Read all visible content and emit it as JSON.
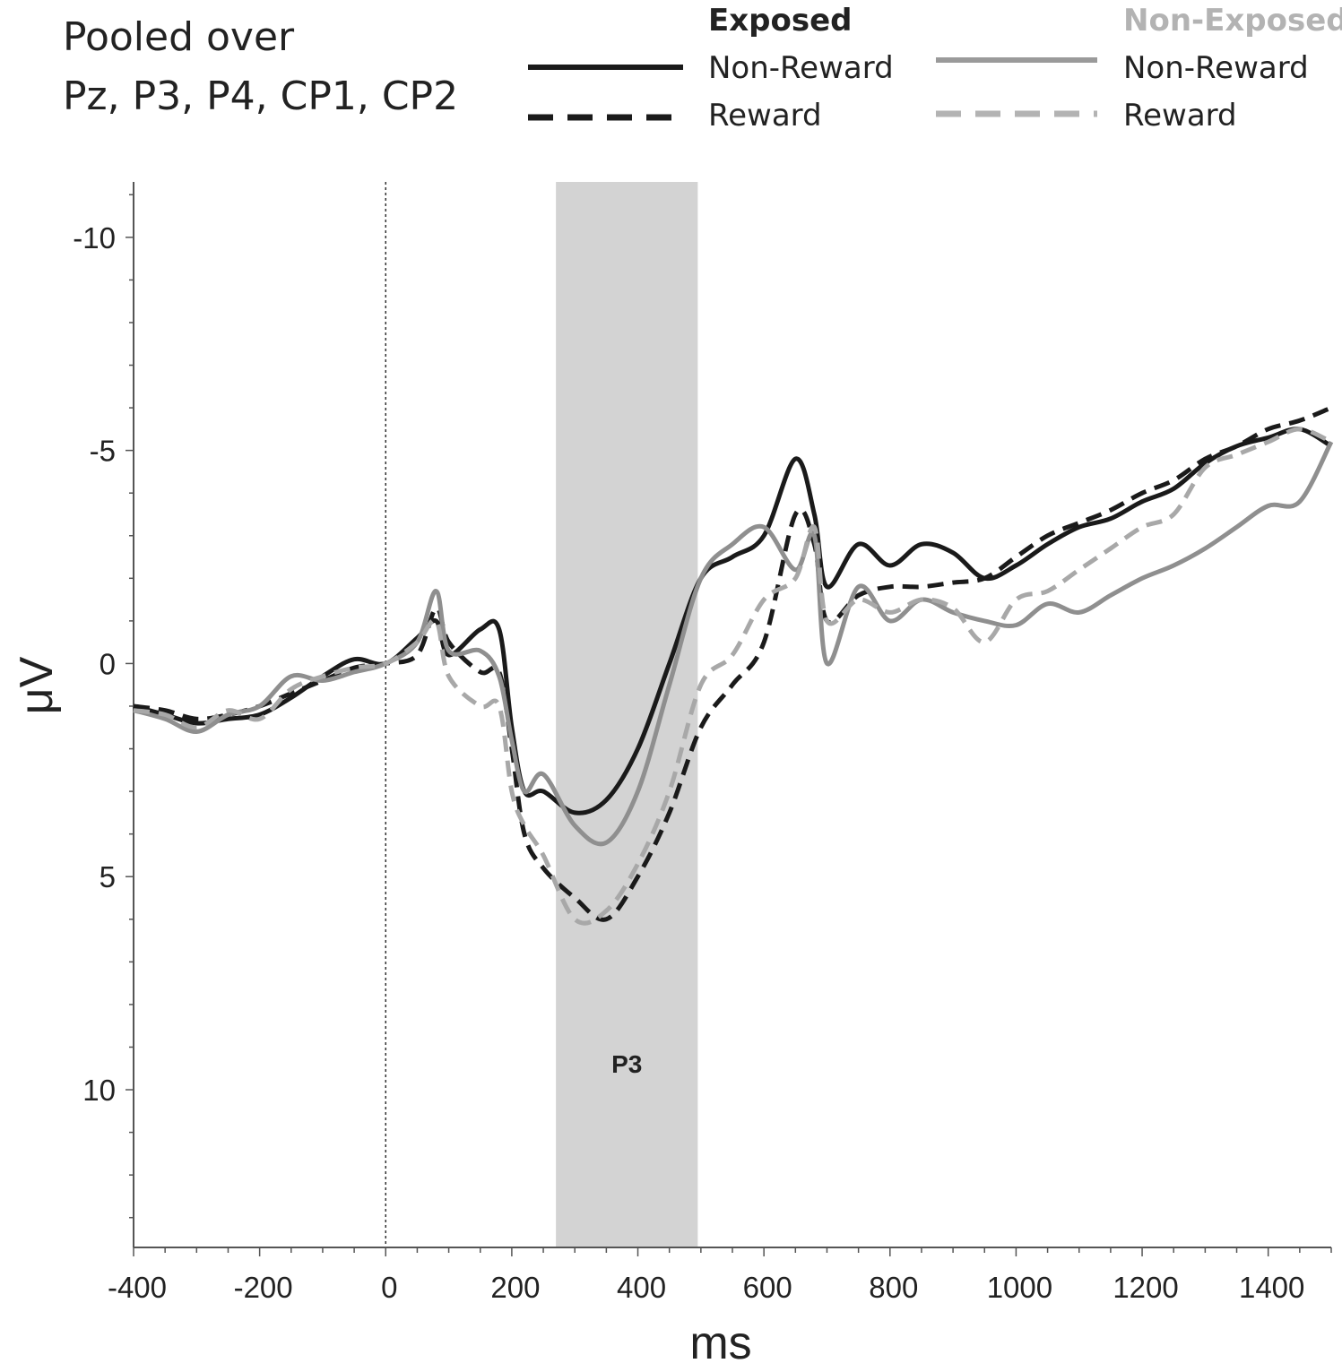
{
  "chart_data": {
    "type": "line",
    "annotation_top": [
      "Pooled over",
      "Pz, P3, P4, CP1, CP2"
    ],
    "xlabel": "ms",
    "ylabel": "μV",
    "xlim": [
      -400,
      1500
    ],
    "ylim": [
      -11.3,
      13.7
    ],
    "y_inverted": true,
    "xticks": [
      -400,
      -200,
      0,
      200,
      400,
      600,
      800,
      1000,
      1200,
      1400
    ],
    "yticks": [
      -10,
      -5,
      0,
      5,
      10
    ],
    "onset_line_x": 0,
    "shaded_window": {
      "label": "P3",
      "x": [
        270,
        495
      ],
      "color": "#d3d3d3"
    },
    "legend": {
      "groups": [
        {
          "title": "Exposed",
          "color": "#222222",
          "entries": [
            "Non-Reward",
            "Reward"
          ]
        },
        {
          "title": "Non-Exposed",
          "color": "#a8a8a8",
          "entries": [
            "Non-Reward",
            "Reward"
          ]
        }
      ]
    },
    "x": [
      -400,
      -350,
      -300,
      -250,
      -200,
      -150,
      -100,
      -50,
      0,
      50,
      80,
      100,
      150,
      180,
      200,
      220,
      250,
      300,
      350,
      400,
      450,
      500,
      550,
      600,
      650,
      680,
      700,
      750,
      800,
      850,
      900,
      950,
      1000,
      1050,
      1100,
      1150,
      1200,
      1250,
      1300,
      1350,
      1400,
      1450,
      1500
    ],
    "series": [
      {
        "name": "Exposed Non-Reward",
        "color": "#1a1a1a",
        "dash": "solid",
        "values": [
          1.0,
          1.2,
          1.4,
          1.3,
          1.2,
          0.8,
          0.3,
          -0.1,
          0.0,
          -0.6,
          -1.0,
          -0.2,
          -0.8,
          -0.8,
          1.5,
          3.0,
          3.0,
          3.5,
          3.2,
          2.0,
          0.0,
          -2.0,
          -2.5,
          -3.0,
          -4.8,
          -3.5,
          -1.8,
          -2.8,
          -2.3,
          -2.8,
          -2.6,
          -2.0,
          -2.3,
          -2.8,
          -3.2,
          -3.4,
          -3.8,
          -4.1,
          -4.7,
          -5.1,
          -5.3,
          -5.5,
          -5.1
        ]
      },
      {
        "name": "Exposed Reward",
        "color": "#1a1a1a",
        "dash": "dashed",
        "values": [
          1.0,
          1.1,
          1.3,
          1.2,
          1.0,
          0.7,
          0.4,
          0.1,
          0.0,
          -0.2,
          -1.3,
          -0.5,
          0.2,
          0.2,
          2.0,
          4.0,
          4.8,
          5.5,
          6.0,
          5.0,
          3.5,
          1.5,
          0.5,
          -0.5,
          -3.5,
          -2.8,
          -1.0,
          -1.6,
          -1.8,
          -1.8,
          -1.9,
          -2.0,
          -2.5,
          -3.0,
          -3.3,
          -3.6,
          -4.0,
          -4.3,
          -4.8,
          -5.1,
          -5.5,
          -5.7,
          -6.0
        ]
      },
      {
        "name": "Non-Exposed Non-Reward",
        "color": "#8f8f8f",
        "dash": "solid",
        "values": [
          1.1,
          1.3,
          1.6,
          1.2,
          1.0,
          0.3,
          0.4,
          0.2,
          0.0,
          -0.5,
          -1.7,
          -0.3,
          -0.3,
          0.3,
          1.8,
          3.0,
          2.6,
          3.8,
          4.2,
          3.0,
          0.5,
          -2.0,
          -2.8,
          -3.2,
          -2.2,
          -3.0,
          0.0,
          -1.8,
          -1.0,
          -1.5,
          -1.2,
          -1.0,
          -0.9,
          -1.4,
          -1.2,
          -1.6,
          -2.0,
          -2.3,
          -2.7,
          -3.2,
          -3.7,
          -3.8,
          -5.2
        ]
      },
      {
        "name": "Non-Exposed Reward",
        "color": "#a8a8a8",
        "dash": "dashed",
        "values": [
          1.1,
          1.2,
          1.5,
          1.1,
          1.3,
          0.6,
          0.3,
          0.1,
          0.0,
          -0.5,
          -1.0,
          0.3,
          1.0,
          1.0,
          3.0,
          3.8,
          4.5,
          6.0,
          5.8,
          4.7,
          3.0,
          0.5,
          -0.2,
          -1.5,
          -2.0,
          -3.2,
          -1.0,
          -1.5,
          -1.2,
          -1.5,
          -1.3,
          -0.5,
          -1.5,
          -1.7,
          -2.2,
          -2.7,
          -3.2,
          -3.5,
          -4.6,
          -4.9,
          -5.2,
          -5.5,
          -5.2
        ]
      }
    ]
  }
}
